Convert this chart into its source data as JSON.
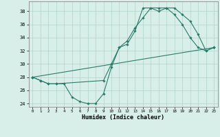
{
  "xlabel": "Humidex (Indice chaleur)",
  "ylabel": "",
  "bg_color": "#d8eee8",
  "grid_color": "#b0d4c8",
  "line_color": "#2a7a6a",
  "xlim": [
    -0.5,
    23.5
  ],
  "ylim": [
    23.5,
    39.5
  ],
  "xticks": [
    0,
    1,
    2,
    3,
    4,
    5,
    6,
    7,
    8,
    9,
    10,
    11,
    12,
    13,
    14,
    15,
    16,
    17,
    18,
    19,
    20,
    21,
    22,
    23
  ],
  "yticks": [
    24,
    26,
    28,
    30,
    32,
    34,
    36,
    38
  ],
  "series": [
    {
      "x": [
        0,
        1,
        2,
        3,
        4,
        5,
        6,
        7,
        8,
        9,
        10,
        11,
        12,
        13,
        14,
        15,
        16,
        17,
        18,
        19,
        20,
        21,
        22,
        23
      ],
      "y": [
        28,
        27.5,
        27,
        27,
        27,
        25,
        24.3,
        24,
        24,
        25.5,
        29.5,
        32.5,
        33,
        35,
        38.5,
        38.5,
        38.5,
        38.5,
        37.5,
        36,
        34,
        32.5,
        32,
        32.5
      ]
    },
    {
      "x": [
        0,
        1,
        2,
        3,
        9,
        10,
        11,
        12,
        13,
        14,
        15,
        16,
        17,
        18,
        19,
        20,
        21,
        22,
        23
      ],
      "y": [
        28,
        27.5,
        27,
        27,
        27.5,
        30,
        32.5,
        33.5,
        35.5,
        37,
        38.5,
        38,
        38.5,
        38.5,
        37.5,
        36.5,
        34.5,
        32,
        32.5
      ]
    },
    {
      "x": [
        0,
        23
      ],
      "y": [
        28,
        32.5
      ]
    }
  ],
  "marker": "D",
  "markersize": 1.8,
  "linewidth": 0.8
}
